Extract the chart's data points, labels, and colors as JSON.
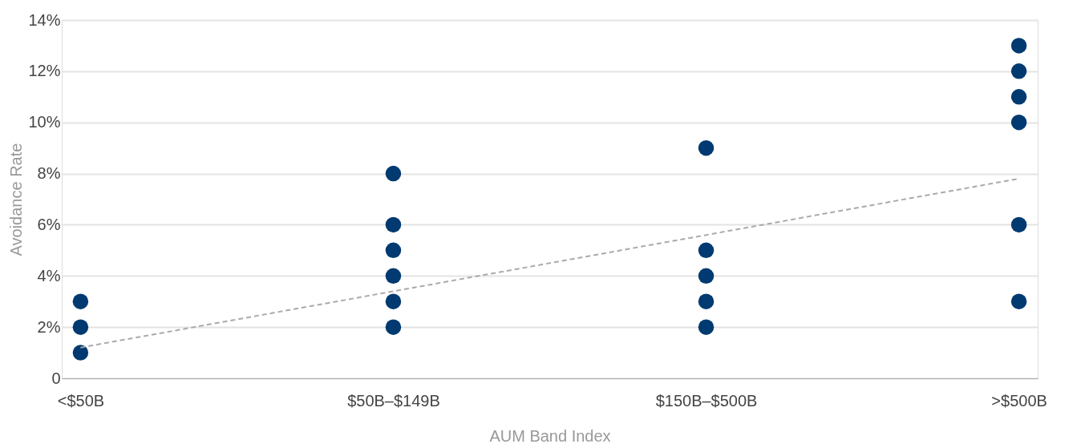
{
  "chart_data": {
    "type": "scatter",
    "xlabel": "AUM Band Index",
    "ylabel": "Avoidance Rate",
    "categories": [
      "<$50B",
      "$50B–$149B",
      "$150B–$500B",
      ">$500B"
    ],
    "series": [
      {
        "color": "#003a70",
        "marker": "circle",
        "x": [
          "<$50B",
          "<$50B",
          "<$50B",
          "$50B–$149B",
          "$50B–$149B",
          "$50B–$149B",
          "$50B–$149B",
          "$50B–$149B",
          "$50B–$149B",
          "$150B–$500B",
          "$150B–$500B",
          "$150B–$500B",
          "$150B–$500B",
          "$150B–$500B",
          ">$500B",
          ">$500B",
          ">$500B",
          ">$500B",
          ">$500B",
          ">$500B"
        ],
        "values": [
          1,
          2,
          3,
          2,
          3,
          4,
          5,
          6,
          8,
          2,
          3,
          4,
          5,
          9,
          3,
          6,
          10,
          11,
          12,
          13
        ]
      },
      {
        "type": "line",
        "color": "#aaaaaa",
        "line_style": "dashed",
        "x": [
          "<$50B",
          ">$500B"
        ],
        "values": [
          1.2,
          7.8
        ]
      }
    ],
    "ylim": [
      0,
      14
    ],
    "yticks": [
      0,
      {
        "value": 2,
        "label": "2%"
      },
      {
        "value": 4,
        "label": "4%"
      },
      {
        "value": 6,
        "label": "6%"
      },
      {
        "value": 8,
        "label": "8%"
      },
      {
        "value": 10,
        "label": "10%"
      },
      {
        "value": 12,
        "label": "12%"
      },
      {
        "value": 14,
        "label": "14%"
      }
    ],
    "grid": "y"
  }
}
